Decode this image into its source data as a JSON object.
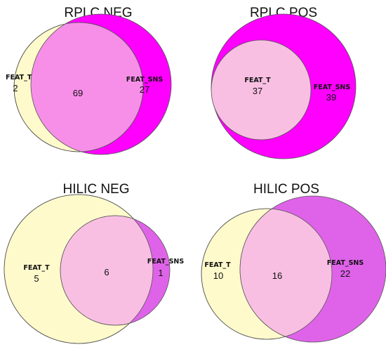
{
  "colors": {
    "feat_t_fill": "#fffacb",
    "feat_sns_fill": "#ff00ff",
    "feat_sns_fill_light": "#df63e8",
    "overlap_fill": "#f9bfe3",
    "overlap_fill_rplc": "#f78fe9"
  },
  "panels": [
    {
      "title": "RPLC NEG",
      "sets": {
        "a": "FEAT_T",
        "b": "FEAT_SNS"
      },
      "counts": {
        "a_only": "2",
        "both": "69",
        "b_only": "27"
      }
    },
    {
      "title": "RPLC POS",
      "sets": {
        "a": "FEAT_T",
        "b": "FEAT_SNS"
      },
      "counts": {
        "both": "37",
        "b_only": "39"
      }
    },
    {
      "title": "HILIC NEG",
      "sets": {
        "a": "FEAT_T",
        "b": "FEAT_SNS"
      },
      "counts": {
        "a_only": "5",
        "both": "6",
        "b_only": "1"
      }
    },
    {
      "title": "HILIC POS",
      "sets": {
        "a": "FEAT_T",
        "b": "FEAT_SNS"
      },
      "counts": {
        "a_only": "10",
        "both": "16",
        "b_only": "22"
      }
    }
  ]
}
